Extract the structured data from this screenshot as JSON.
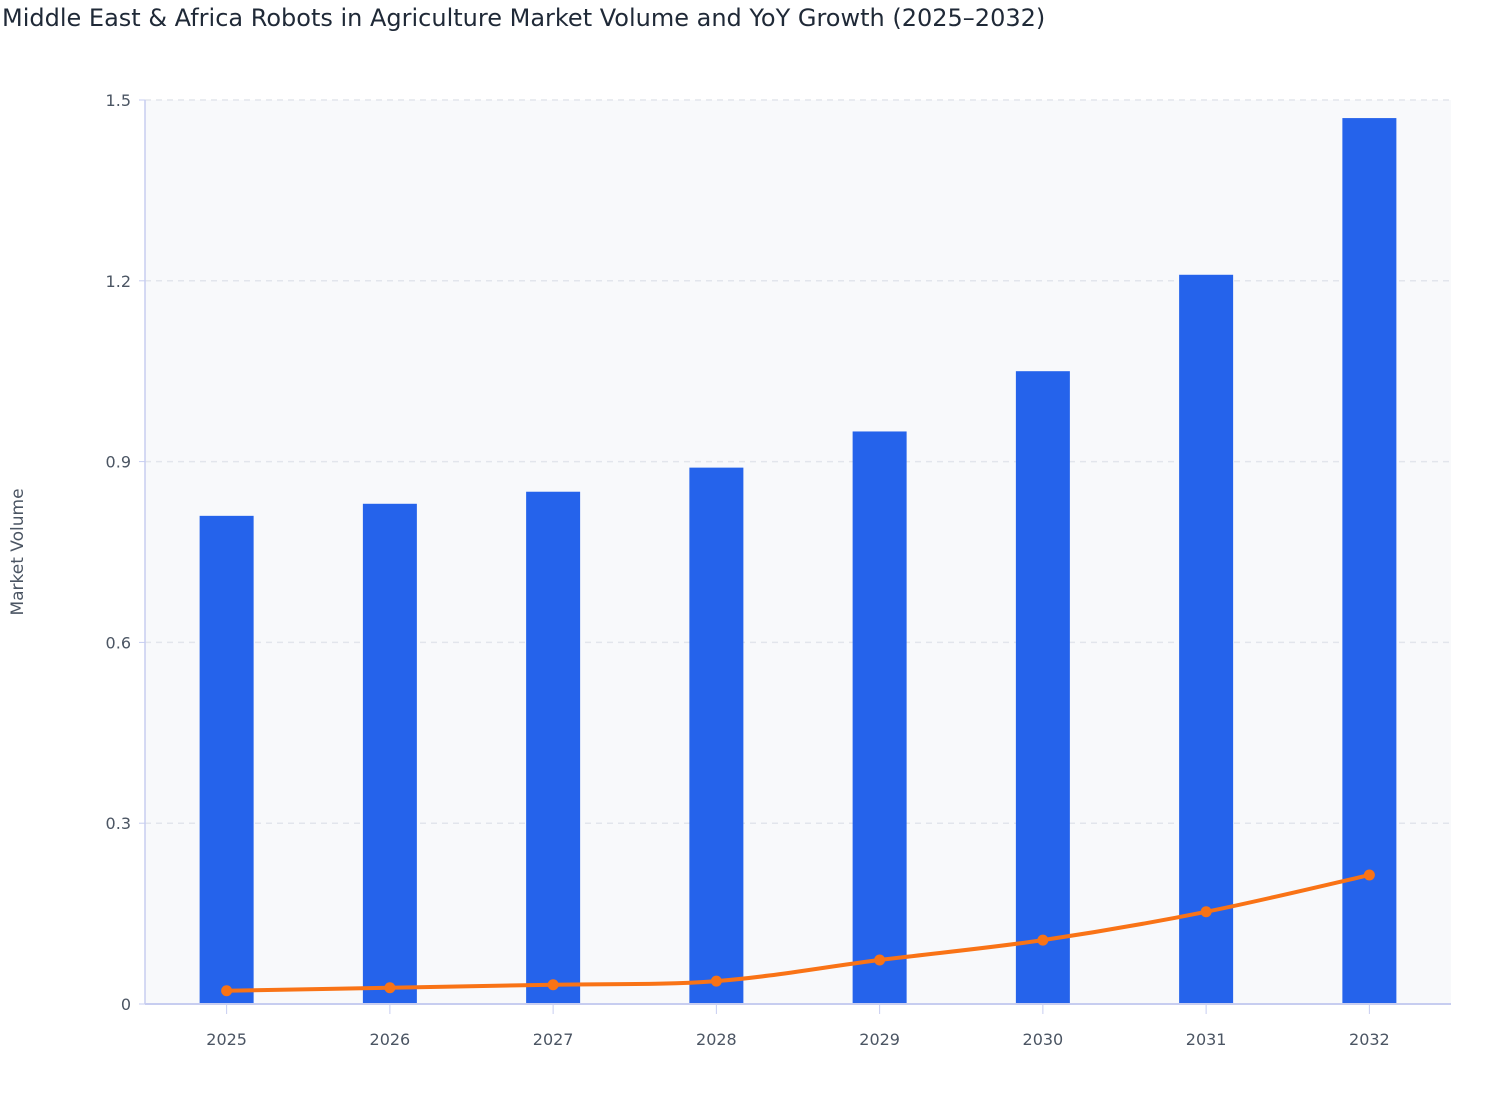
{
  "chart_data": {
    "type": "bar",
    "title": "Middle East & Africa Robots in Agriculture Market Volume and YoY Growth (2025–2032)",
    "xlabel": "",
    "ylabel": "Market Volume",
    "categories": [
      "2025",
      "2026",
      "2027",
      "2028",
      "2029",
      "2030",
      "2031",
      "2032"
    ],
    "series": [
      {
        "type": "bar",
        "values": [
          0.81,
          0.83,
          0.85,
          0.89,
          0.95,
          1.05,
          1.21,
          1.47
        ],
        "color": "#2563eb"
      },
      {
        "type": "line",
        "values": [
          0.022,
          0.027,
          0.032,
          0.038,
          0.073,
          0.106,
          0.153,
          0.214
        ],
        "color": "#f97316"
      }
    ],
    "ylim": [
      0,
      1.5
    ],
    "yticks": [
      "0",
      "0.3",
      "0.6",
      "0.9",
      "1.2",
      "1.5"
    ],
    "grid": true,
    "plot_background": "#f8f9fb"
  }
}
